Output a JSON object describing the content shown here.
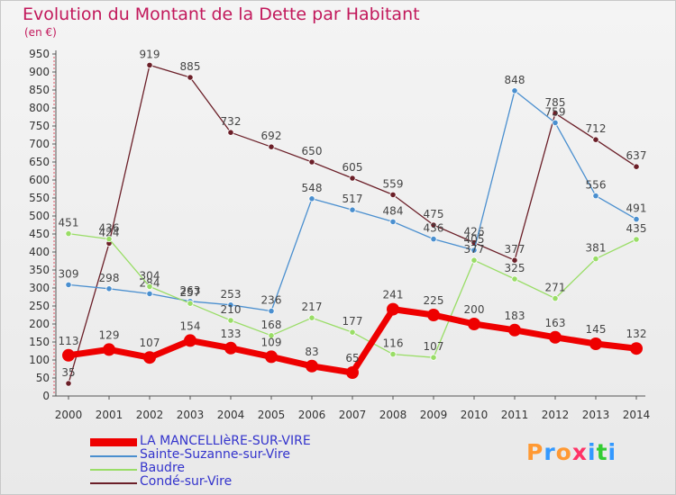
{
  "title": "Evolution du Montant de la Dette par Habitant",
  "unit": "(en €)",
  "logo": {
    "text": "Proxiti",
    "colors": [
      "#ff9933",
      "#3399ff",
      "#ff9933",
      "#ff3366",
      "#3399ff",
      "#33cc33",
      "#3399ff"
    ]
  },
  "chart_data": {
    "type": "line",
    "x": [
      2000,
      2001,
      2002,
      2003,
      2004,
      2005,
      2006,
      2007,
      2008,
      2009,
      2010,
      2011,
      2012,
      2013,
      2014
    ],
    "ylim": [
      0,
      950
    ],
    "yticks": [
      0,
      50,
      100,
      150,
      200,
      250,
      300,
      350,
      400,
      450,
      500,
      550,
      600,
      650,
      700,
      750,
      800,
      850,
      900,
      950
    ],
    "grid": false,
    "legend_position": "bottom-left",
    "series": [
      {
        "name": "Condé-sur-Vire",
        "color": "#6b1f28",
        "highlight": false,
        "values": [
          35,
          424,
          919,
          885,
          732,
          692,
          650,
          605,
          559,
          475,
          426,
          377,
          785,
          712,
          637
        ],
        "labels": [
          "35",
          "424",
          "919",
          "885",
          "732",
          "692",
          "650",
          "605",
          "559",
          "475",
          "426",
          "377",
          "785",
          "712",
          "637"
        ]
      },
      {
        "name": "Sainte-Suzanne-sur-Vire",
        "color": "#4a8fcf",
        "highlight": false,
        "values": [
          309,
          298,
          284,
          263,
          253,
          236,
          548,
          517,
          484,
          436,
          405,
          848,
          759,
          556,
          491
        ],
        "labels": [
          "309",
          "298",
          "284",
          "263",
          "253",
          "236",
          "548",
          "517",
          "484",
          "436",
          "405",
          "848",
          "759",
          "556",
          "491"
        ]
      },
      {
        "name": "Baudre",
        "color": "#99dd66",
        "highlight": false,
        "values": [
          451,
          436,
          304,
          257,
          210,
          168,
          217,
          177,
          116,
          107,
          377,
          325,
          271,
          381,
          435
        ],
        "labels": [
          "451",
          "436",
          "304",
          "257",
          "210",
          "168",
          "217",
          "177",
          "116",
          "107",
          "377",
          "325",
          "271",
          "381",
          "435"
        ]
      },
      {
        "name": "LA MANCELLIèRE-SUR-VIRE",
        "color": "#ee0000",
        "highlight": true,
        "values": [
          113,
          129,
          107,
          154,
          133,
          109,
          83,
          65,
          241,
          225,
          200,
          183,
          163,
          145,
          132
        ],
        "labels": [
          "113",
          "129",
          "107",
          "154",
          "133",
          "109",
          "83",
          "65",
          "241",
          "225",
          "200",
          "183",
          "163",
          "145",
          "132"
        ]
      }
    ],
    "legend": [
      {
        "label": "LA MANCELLIèRE-SUR-VIRE",
        "color": "#ee0000",
        "thick": true
      },
      {
        "label": "Sainte-Suzanne-sur-Vire",
        "color": "#4a8fcf",
        "thick": false
      },
      {
        "label": "Baudre",
        "color": "#99dd66",
        "thick": false
      },
      {
        "label": "Condé-sur-Vire",
        "color": "#6b1f28",
        "thick": false
      }
    ]
  }
}
